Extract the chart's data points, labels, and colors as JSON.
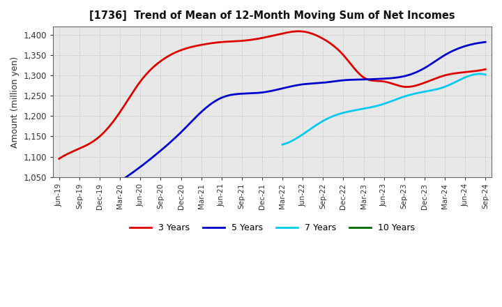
{
  "title": "[1736]  Trend of Mean of 12-Month Moving Sum of Net Incomes",
  "ylabel": "Amount (million yen)",
  "background_color": "#ffffff",
  "plot_bg_color": "#e8e8e8",
  "grid_color": "#999999",
  "ylim": [
    1050,
    1420
  ],
  "yticks": [
    1050,
    1100,
    1150,
    1200,
    1250,
    1300,
    1350,
    1400
  ],
  "x_labels": [
    "Jun-19",
    "Sep-19",
    "Dec-19",
    "Mar-20",
    "Jun-20",
    "Sep-20",
    "Dec-20",
    "Mar-21",
    "Jun-21",
    "Sep-21",
    "Dec-21",
    "Mar-22",
    "Jun-22",
    "Sep-22",
    "Dec-22",
    "Mar-23",
    "Jun-23",
    "Sep-23",
    "Dec-23",
    "Mar-24",
    "Jun-24",
    "Sep-24"
  ],
  "series": {
    "3 Years": {
      "color": "#dd0000",
      "data_x": [
        0,
        1,
        2,
        3,
        4,
        5,
        6,
        7,
        8,
        9,
        10,
        11,
        12,
        13,
        14,
        15,
        16,
        17,
        18,
        19,
        20,
        21
      ],
      "data_y": [
        1095,
        1120,
        1150,
        1210,
        1285,
        1335,
        1362,
        1375,
        1382,
        1385,
        1392,
        1403,
        1408,
        1390,
        1350,
        1295,
        1285,
        1272,
        1282,
        1300,
        1308,
        1315
      ]
    },
    "5 Years": {
      "color": "#0000cc",
      "data_x": [
        3,
        4,
        5,
        6,
        7,
        8,
        9,
        10,
        11,
        12,
        13,
        14,
        15,
        16,
        17,
        18,
        19,
        20,
        21
      ],
      "data_y": [
        1040,
        1075,
        1115,
        1160,
        1210,
        1245,
        1255,
        1258,
        1268,
        1278,
        1282,
        1288,
        1290,
        1292,
        1298,
        1318,
        1350,
        1372,
        1382
      ]
    },
    "7 Years": {
      "color": "#00ccee",
      "data_x": [
        11,
        12,
        13,
        14,
        15,
        16,
        17,
        18,
        19,
        20,
        21
      ],
      "data_y": [
        1130,
        1155,
        1188,
        1208,
        1218,
        1230,
        1248,
        1260,
        1272,
        1295,
        1302
      ]
    },
    "10 Years": {
      "color": "#006600",
      "data_x": [],
      "data_y": []
    }
  },
  "legend_labels": [
    "3 Years",
    "5 Years",
    "7 Years",
    "10 Years"
  ],
  "legend_colors": [
    "#dd0000",
    "#0000cc",
    "#00ccee",
    "#006600"
  ]
}
